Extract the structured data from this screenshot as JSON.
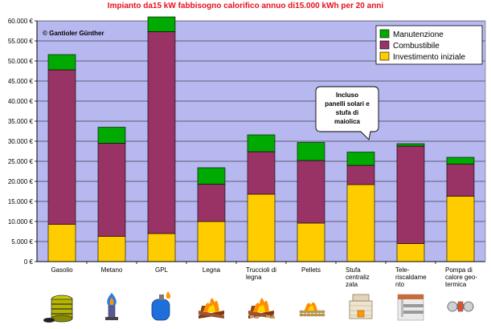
{
  "chart_data": {
    "type": "bar",
    "stacked": true,
    "title": "Impianto da15 kW   fabbisogno calorifico annuo di15.000 kWh per 20 anni",
    "credit": "© Gantioler Günther",
    "categories": [
      [
        "Gasolio"
      ],
      [
        "Metano"
      ],
      [
        "GPL"
      ],
      [
        "Legna"
      ],
      [
        "Truccioli di",
        "legna"
      ],
      [
        "Pellets"
      ],
      [
        "Stufa",
        "centraliz",
        "zata"
      ],
      [
        "Tele-",
        "riscaldame",
        "nto"
      ],
      [
        "Pompa di",
        "calore geo-",
        "termica"
      ]
    ],
    "series": [
      {
        "name": "Investimento iniziale",
        "color": "#ffcc00",
        "values": [
          9300,
          6300,
          7000,
          10000,
          16800,
          9600,
          19200,
          4500,
          16300
        ]
      },
      {
        "name": "Combustibile",
        "color": "#993366",
        "values": [
          38500,
          23200,
          50300,
          9300,
          10600,
          15600,
          4800,
          24300,
          8000
        ]
      },
      {
        "name": "Manutenzione",
        "color": "#00aa00",
        "values": [
          3800,
          4000,
          3700,
          4100,
          4200,
          4500,
          3300,
          600,
          1700
        ]
      }
    ],
    "legend_order": [
      "Manutenzione",
      "Combustibile",
      "Investimento iniziale"
    ],
    "legend_position": "top-right",
    "ylim": [
      0,
      60000
    ],
    "yticks": [
      0,
      5000,
      10000,
      15000,
      20000,
      25000,
      30000,
      35000,
      40000,
      45000,
      50000,
      55000,
      60000
    ],
    "ytick_labels": [
      "0 €",
      "5.000 €",
      "10.000 €",
      "15.000 €",
      "20.000 €",
      "25.000 €",
      "30.000 €",
      "35.000 €",
      "40.000 €",
      "45.000 €",
      "50.000 €",
      "55.000 €",
      "60.000 €"
    ],
    "grid": true,
    "plot_background": "#b8b8f0",
    "annotation": {
      "category_index": 6,
      "lines": [
        "Incluso",
        "panelli solari e",
        "stufa di",
        "maiolica"
      ]
    },
    "icons": [
      "oil-barrel-icon",
      "gas-flame-icon",
      "lpg-tank-icon",
      "wood-fire-icon",
      "wood-chips-fire-icon",
      "pellets-icon",
      "central-stove-icon",
      "district-heating-icon",
      "heat-pump-icon"
    ]
  }
}
